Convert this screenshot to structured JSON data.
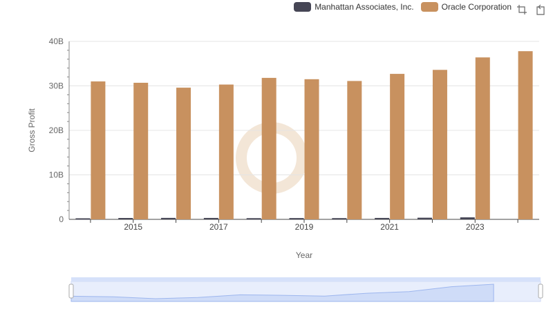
{
  "legend": [
    {
      "label": "Manhattan Associates, Inc.",
      "color": "#464655"
    },
    {
      "label": "Oracle Corporation",
      "color": "#c8915f"
    }
  ],
  "toolbox": [
    {
      "icon": "zoom-icon"
    },
    {
      "icon": "restore-icon"
    }
  ],
  "chart_data": {
    "type": "bar",
    "xlabel": "Year",
    "ylabel": "Gross Profit",
    "ylim": [
      0,
      40000000000
    ],
    "yticks": [
      "0",
      "10B",
      "20B",
      "30B",
      "40B"
    ],
    "xticks": [
      "2015",
      "2017",
      "2019",
      "2021",
      "2023"
    ],
    "categories": [
      "2014",
      "2015",
      "2016",
      "2017",
      "2018",
      "2019",
      "2020",
      "2021",
      "2022",
      "2023",
      "2024"
    ],
    "series": [
      {
        "name": "Manhattan Associates, Inc.",
        "color": "#464655",
        "values": [
          240000000.0,
          310000000.0,
          330000000.0,
          320000000.0,
          270000000.0,
          290000000.0,
          280000000.0,
          320000000.0,
          370000000.0,
          450000000.0,
          null
        ]
      },
      {
        "name": "Oracle Corporation",
        "color": "#c8915f",
        "values": [
          31000000000.0,
          30700000000.0,
          29600000000.0,
          30300000000.0,
          31800000000.0,
          31500000000.0,
          31100000000.0,
          32700000000.0,
          33600000000.0,
          36400000000.0,
          37800000000.0
        ]
      }
    ],
    "grid": true,
    "legend_position": "top-right",
    "data_zoom": true
  }
}
